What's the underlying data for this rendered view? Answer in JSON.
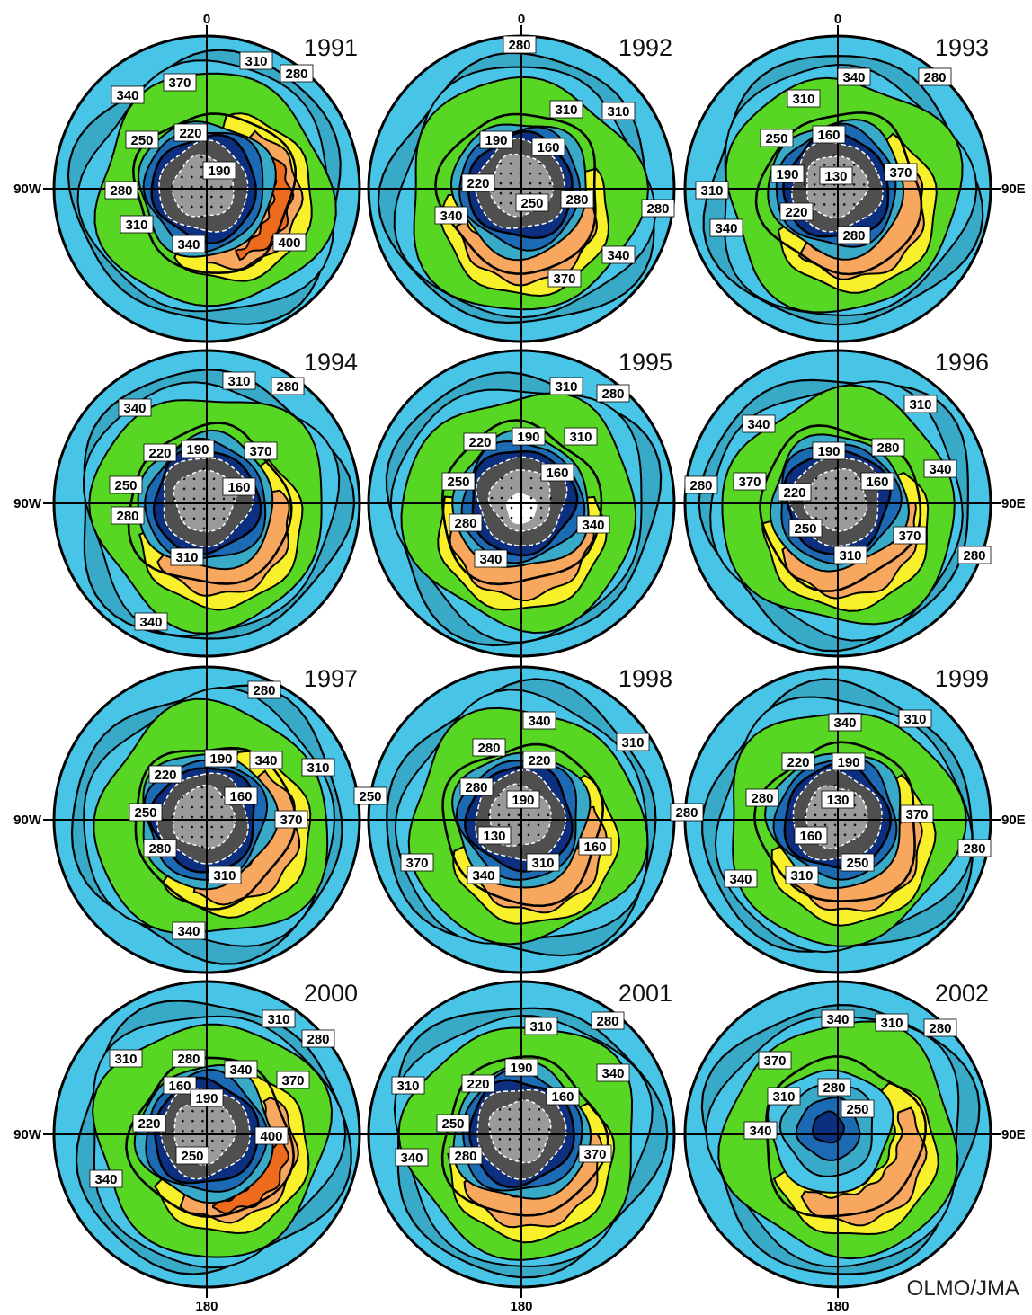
{
  "colors": {
    "c400": "#ee6a1c",
    "c370": "#f7a85e",
    "c340": "#f7f02a",
    "c310": "#57d623",
    "c280": "#48c4e6",
    "c250": "#38aac8",
    "c220": "#1d6ab4",
    "c190": "#0c2f80",
    "c160": "#4f4f4f",
    "c130": "#9a9a9a",
    "low": "#d8d8d8",
    "contour": "#000000"
  },
  "axes": {
    "top": "0",
    "bottom": "180",
    "left": "90W",
    "right": "90E"
  },
  "credit": "OLMO/JMA",
  "panels": [
    {
      "year": "1991",
      "labels": [
        "310",
        "280",
        "370",
        "340",
        "250",
        "220",
        "190",
        "280",
        "310",
        "340",
        "400"
      ]
    },
    {
      "year": "1992",
      "labels": [
        "280",
        "310",
        "310",
        "190",
        "160",
        "220",
        "250",
        "280",
        "280",
        "340",
        "340",
        "370"
      ]
    },
    {
      "year": "1993",
      "labels": [
        "340",
        "280",
        "310",
        "250",
        "160",
        "190",
        "130",
        "370",
        "310",
        "220",
        "340",
        "280"
      ]
    },
    {
      "year": "1994",
      "labels": [
        "310",
        "280",
        "340",
        "220",
        "190",
        "370",
        "250",
        "160",
        "280",
        "310",
        "340"
      ]
    },
    {
      "year": "1995",
      "labels": [
        "310",
        "280",
        "220",
        "190",
        "310",
        "250",
        "160",
        "280",
        "340",
        "340"
      ]
    },
    {
      "year": "1996",
      "labels": [
        "310",
        "340",
        "190",
        "280",
        "340",
        "280",
        "370",
        "220",
        "160",
        "250",
        "370",
        "310",
        "280"
      ]
    },
    {
      "year": "1997",
      "labels": [
        "280",
        "190",
        "340",
        "310",
        "220",
        "160",
        "250",
        "370",
        "280",
        "310",
        "340"
      ]
    },
    {
      "year": "1998",
      "labels": [
        "340",
        "310",
        "280",
        "220",
        "280",
        "190",
        "130",
        "160",
        "370",
        "340",
        "310",
        "250"
      ]
    },
    {
      "year": "1999",
      "labels": [
        "340",
        "310",
        "220",
        "190",
        "280",
        "130",
        "280",
        "370",
        "280",
        "160",
        "340",
        "310",
        "250"
      ]
    },
    {
      "year": "2000",
      "labels": [
        "310",
        "280",
        "310",
        "280",
        "340",
        "370",
        "160",
        "190",
        "220",
        "400",
        "250",
        "340"
      ]
    },
    {
      "year": "2001",
      "labels": [
        "310",
        "280",
        "190",
        "340",
        "310",
        "220",
        "160",
        "250",
        "280",
        "370",
        "340"
      ]
    },
    {
      "year": "2002",
      "labels": [
        "340",
        "310",
        "280",
        "370",
        "280",
        "310",
        "250",
        "340"
      ]
    }
  ]
}
